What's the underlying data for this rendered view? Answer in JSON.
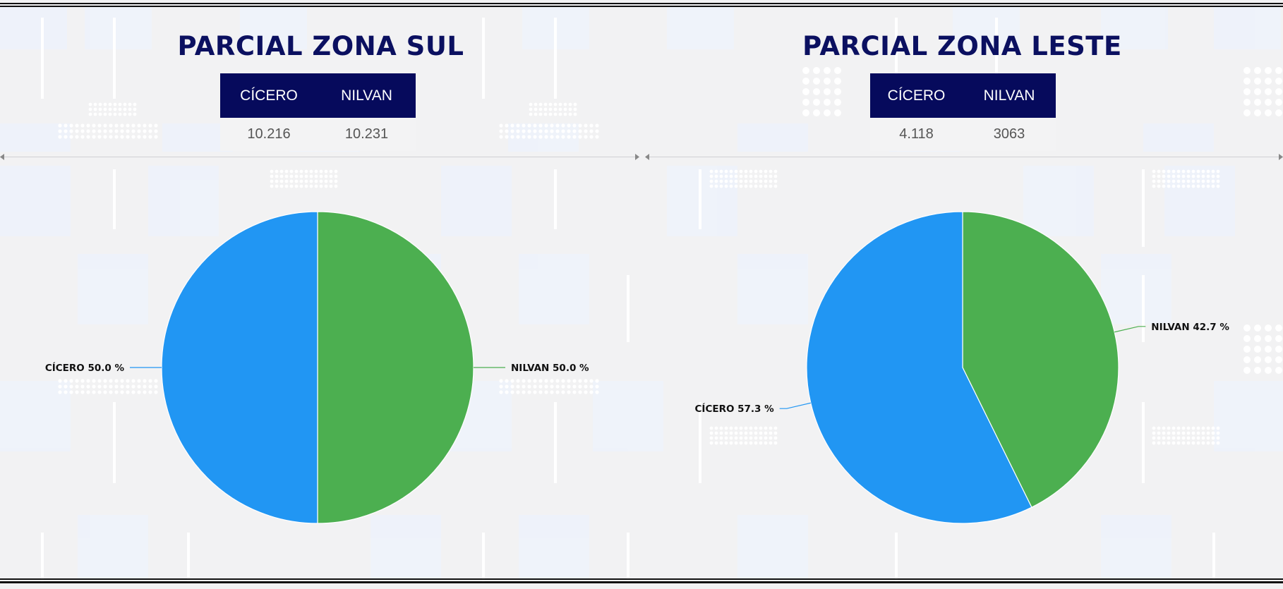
{
  "colors": {
    "cicero": "#2196f3",
    "nilvan": "#4caf50",
    "title": "#0b1060",
    "table_header": "#060a5c"
  },
  "panels": [
    {
      "title": "PARCIAL ZONA SUL",
      "table": {
        "headers": [
          "CÍCERO",
          "NILVAN"
        ],
        "values": [
          "10.216",
          "10.231"
        ]
      }
    },
    {
      "title": "PARCIAL ZONA LESTE",
      "table": {
        "headers": [
          "CÍCERO",
          "NILVAN"
        ],
        "values": [
          "4.118",
          "3063"
        ]
      }
    }
  ],
  "chart_data": [
    {
      "type": "pie",
      "title": "",
      "slices": [
        {
          "name": "NILVAN",
          "percent": 50.0,
          "label": "NILVAN 50.0 %",
          "color": "#4caf50"
        },
        {
          "name": "CÍCERO",
          "percent": 50.0,
          "label": "CÍCERO 50.0 %",
          "color": "#2196f3"
        }
      ]
    },
    {
      "type": "pie",
      "title": "",
      "slices": [
        {
          "name": "NILVAN",
          "percent": 42.7,
          "label": "NILVAN 42.7 %",
          "color": "#4caf50"
        },
        {
          "name": "CÍCERO",
          "percent": 57.3,
          "label": "CÍCERO 57.3 %",
          "color": "#2196f3"
        }
      ]
    }
  ]
}
